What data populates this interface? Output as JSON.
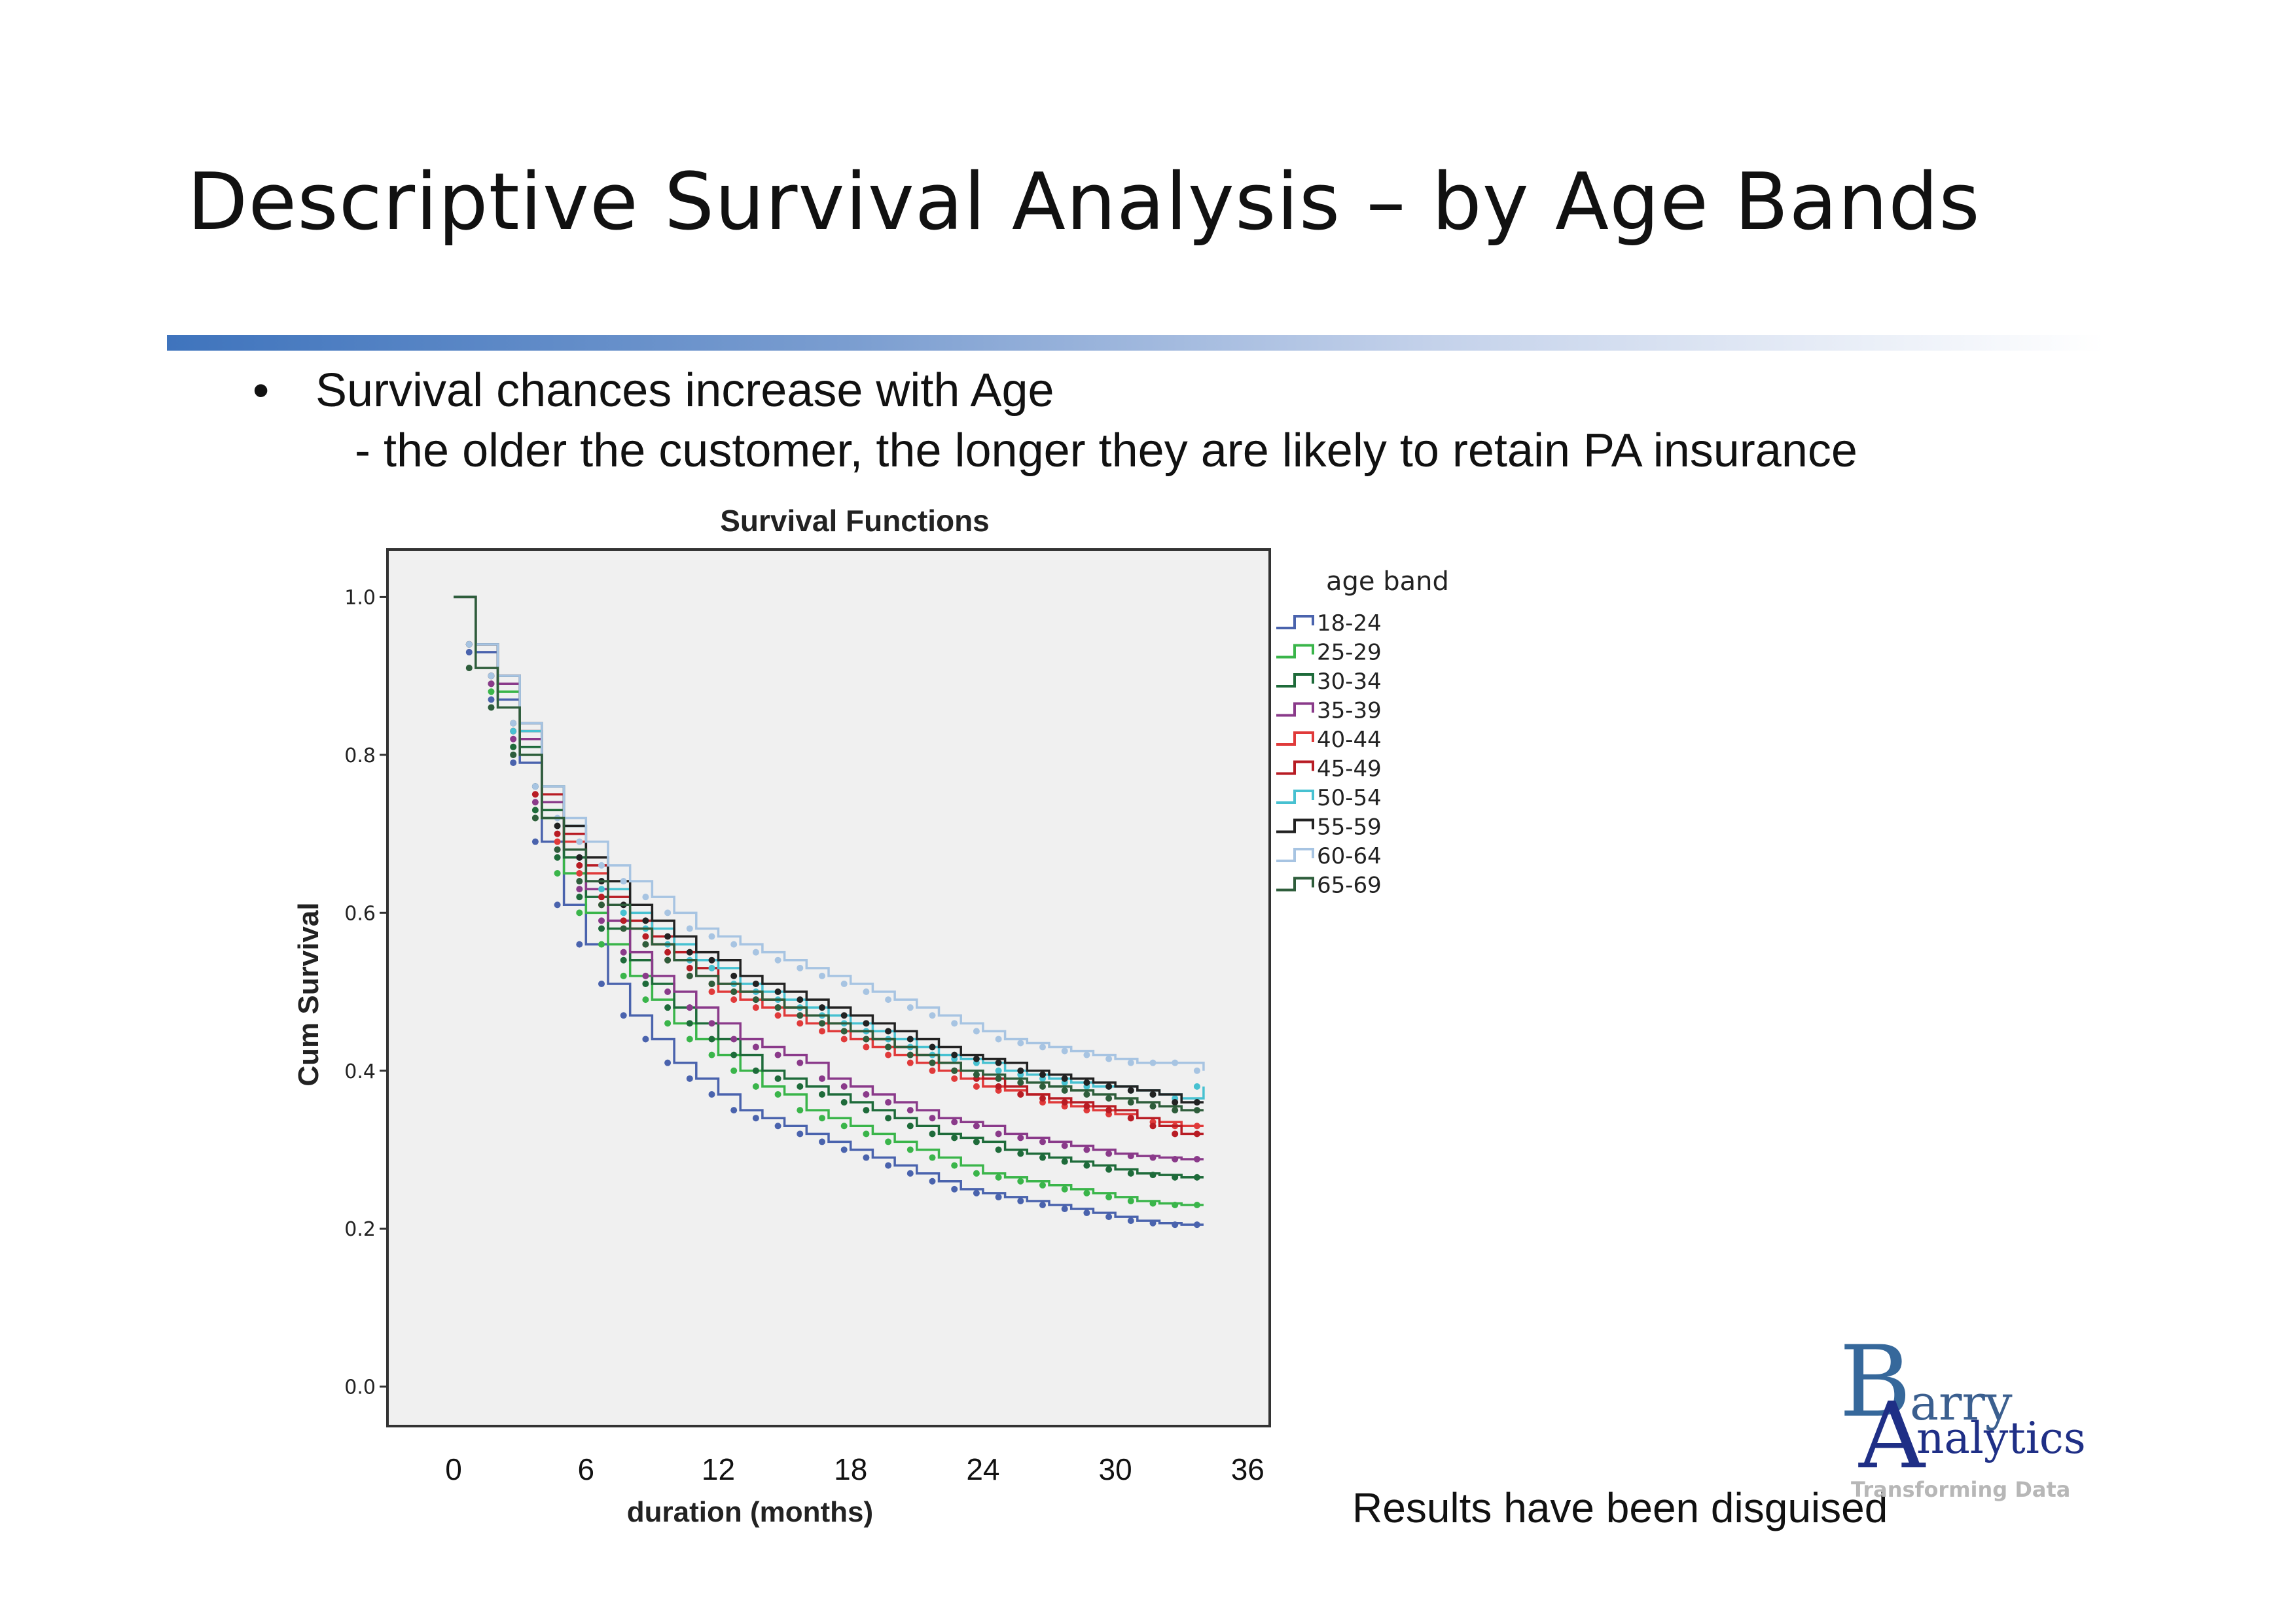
{
  "slide": {
    "title": "Descriptive Survival Analysis – by Age Bands",
    "bullet_symbol": "•",
    "bullet": "Survival chances increase with Age",
    "sub_bullet": "- the older the customer, the longer they are likely to retain PA insurance",
    "disclaimer": "Results have been disguised"
  },
  "logo": {
    "letter_b": "B",
    "letter_a": "A",
    "word_top": "arry",
    "word_bottom": "nalytics",
    "tagline": "Transforming Data"
  },
  "chart_data": {
    "type": "line",
    "step": true,
    "title": "Survival Functions",
    "xlabel": "duration (months)",
    "ylabel": "Cum Survival",
    "legend_title": "age band",
    "legend_position": "right",
    "xlim": [
      -3,
      37
    ],
    "ylim": [
      -0.05,
      1.06
    ],
    "x_ticks": [
      "0",
      "6",
      "12",
      "18",
      "24",
      "30",
      "36"
    ],
    "y_ticks": [
      "0.0",
      "0.2",
      "0.4",
      "0.6",
      "0.8",
      "1.0"
    ],
    "plot_background": "#f0f0f0",
    "grid": false,
    "x": [
      0,
      1,
      2,
      3,
      4,
      5,
      6,
      7,
      8,
      9,
      10,
      11,
      12,
      13,
      14,
      15,
      16,
      17,
      18,
      19,
      20,
      21,
      22,
      23,
      24,
      25,
      26,
      27,
      28,
      29,
      30,
      31,
      32,
      33,
      34
    ],
    "series": [
      {
        "name": "18-24",
        "color": "#4a63ad",
        "values": [
          1.0,
          0.93,
          0.87,
          0.79,
          0.69,
          0.61,
          0.56,
          0.51,
          0.47,
          0.44,
          0.41,
          0.39,
          0.37,
          0.35,
          0.34,
          0.33,
          0.32,
          0.31,
          0.3,
          0.29,
          0.28,
          0.27,
          0.26,
          0.25,
          0.245,
          0.24,
          0.235,
          0.23,
          0.225,
          0.22,
          0.215,
          0.21,
          0.207,
          0.205,
          0.205
        ]
      },
      {
        "name": "25-29",
        "color": "#3ab54a",
        "values": [
          1.0,
          0.94,
          0.88,
          0.8,
          0.72,
          0.65,
          0.6,
          0.56,
          0.52,
          0.49,
          0.46,
          0.44,
          0.42,
          0.4,
          0.38,
          0.37,
          0.35,
          0.34,
          0.33,
          0.32,
          0.31,
          0.3,
          0.29,
          0.28,
          0.27,
          0.265,
          0.26,
          0.255,
          0.25,
          0.245,
          0.24,
          0.235,
          0.232,
          0.23,
          0.23
        ]
      },
      {
        "name": "30-34",
        "color": "#1e6b3a",
        "values": [
          1.0,
          0.94,
          0.89,
          0.81,
          0.73,
          0.67,
          0.62,
          0.58,
          0.54,
          0.51,
          0.48,
          0.46,
          0.44,
          0.42,
          0.4,
          0.39,
          0.38,
          0.37,
          0.36,
          0.35,
          0.34,
          0.33,
          0.32,
          0.315,
          0.31,
          0.3,
          0.295,
          0.29,
          0.285,
          0.28,
          0.275,
          0.27,
          0.268,
          0.265,
          0.265
        ]
      },
      {
        "name": "35-39",
        "color": "#8a3a8a",
        "values": [
          1.0,
          0.94,
          0.89,
          0.82,
          0.74,
          0.68,
          0.63,
          0.59,
          0.55,
          0.52,
          0.5,
          0.48,
          0.46,
          0.44,
          0.43,
          0.42,
          0.41,
          0.39,
          0.38,
          0.37,
          0.36,
          0.35,
          0.34,
          0.335,
          0.33,
          0.32,
          0.315,
          0.31,
          0.305,
          0.3,
          0.295,
          0.292,
          0.29,
          0.288,
          0.288
        ]
      },
      {
        "name": "40-44",
        "color": "#e03a3a",
        "values": [
          1.0,
          0.94,
          0.9,
          0.83,
          0.75,
          0.69,
          0.65,
          0.61,
          0.58,
          0.56,
          0.54,
          0.52,
          0.5,
          0.49,
          0.48,
          0.47,
          0.46,
          0.45,
          0.44,
          0.43,
          0.42,
          0.41,
          0.4,
          0.39,
          0.38,
          0.375,
          0.37,
          0.36,
          0.355,
          0.35,
          0.345,
          0.34,
          0.335,
          0.33,
          0.33
        ]
      },
      {
        "name": "45-49",
        "color": "#b81c24",
        "values": [
          1.0,
          0.94,
          0.9,
          0.83,
          0.75,
          0.7,
          0.66,
          0.62,
          0.59,
          0.57,
          0.55,
          0.53,
          0.51,
          0.5,
          0.49,
          0.48,
          0.47,
          0.46,
          0.45,
          0.44,
          0.43,
          0.42,
          0.41,
          0.4,
          0.39,
          0.38,
          0.37,
          0.365,
          0.36,
          0.355,
          0.35,
          0.34,
          0.33,
          0.32,
          0.32
        ]
      },
      {
        "name": "50-54",
        "color": "#47c1d1",
        "values": [
          1.0,
          0.94,
          0.9,
          0.83,
          0.76,
          0.71,
          0.67,
          0.63,
          0.6,
          0.58,
          0.56,
          0.54,
          0.53,
          0.51,
          0.5,
          0.49,
          0.48,
          0.47,
          0.46,
          0.45,
          0.44,
          0.43,
          0.42,
          0.415,
          0.41,
          0.4,
          0.395,
          0.39,
          0.385,
          0.38,
          0.38,
          0.375,
          0.37,
          0.365,
          0.38
        ]
      },
      {
        "name": "55-59",
        "color": "#222222",
        "values": [
          1.0,
          0.94,
          0.9,
          0.84,
          0.76,
          0.71,
          0.67,
          0.64,
          0.61,
          0.59,
          0.57,
          0.55,
          0.54,
          0.52,
          0.51,
          0.5,
          0.49,
          0.48,
          0.47,
          0.46,
          0.45,
          0.44,
          0.43,
          0.42,
          0.415,
          0.41,
          0.4,
          0.395,
          0.39,
          0.385,
          0.38,
          0.375,
          0.37,
          0.36,
          0.36
        ]
      },
      {
        "name": "60-64",
        "color": "#a7c4e2",
        "values": [
          1.0,
          0.94,
          0.9,
          0.84,
          0.76,
          0.72,
          0.69,
          0.66,
          0.64,
          0.62,
          0.6,
          0.58,
          0.57,
          0.56,
          0.55,
          0.54,
          0.53,
          0.52,
          0.51,
          0.5,
          0.49,
          0.48,
          0.47,
          0.46,
          0.45,
          0.44,
          0.435,
          0.43,
          0.425,
          0.42,
          0.415,
          0.41,
          0.41,
          0.41,
          0.4
        ]
      },
      {
        "name": "65-69",
        "color": "#2e5d3b",
        "values": [
          1.0,
          0.91,
          0.86,
          0.8,
          0.72,
          0.68,
          0.64,
          0.61,
          0.58,
          0.56,
          0.54,
          0.52,
          0.51,
          0.5,
          0.49,
          0.48,
          0.47,
          0.46,
          0.45,
          0.44,
          0.43,
          0.42,
          0.41,
          0.4,
          0.395,
          0.39,
          0.385,
          0.38,
          0.375,
          0.37,
          0.365,
          0.36,
          0.355,
          0.35,
          0.35
        ]
      }
    ]
  }
}
